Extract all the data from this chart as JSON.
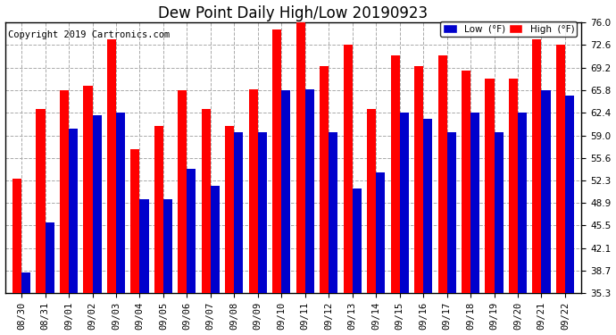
{
  "title": "Dew Point Daily High/Low 20190923",
  "copyright": "Copyright 2019 Cartronics.com",
  "dates": [
    "08/30",
    "08/31",
    "09/01",
    "09/02",
    "09/03",
    "09/04",
    "09/05",
    "09/06",
    "09/07",
    "09/08",
    "09/09",
    "09/10",
    "09/11",
    "09/12",
    "09/13",
    "09/14",
    "09/15",
    "09/16",
    "09/17",
    "09/18",
    "09/19",
    "09/20",
    "09/21",
    "09/22"
  ],
  "high": [
    52.5,
    63.0,
    65.8,
    66.5,
    73.5,
    57.0,
    60.5,
    65.8,
    63.0,
    60.5,
    66.0,
    75.0,
    76.5,
    69.5,
    72.6,
    63.0,
    71.0,
    69.5,
    71.0,
    68.8,
    67.5,
    67.5,
    73.5,
    72.6
  ],
  "low": [
    38.5,
    46.0,
    60.0,
    62.0,
    62.5,
    49.5,
    49.5,
    54.0,
    51.5,
    59.5,
    59.5,
    65.8,
    66.0,
    59.5,
    51.0,
    53.5,
    62.5,
    61.5,
    59.5,
    62.5,
    59.5,
    62.5,
    65.8,
    65.0
  ],
  "ymin": 35.3,
  "ymax": 76.0,
  "yticks": [
    35.3,
    38.7,
    42.1,
    45.5,
    48.9,
    52.3,
    55.6,
    59.0,
    62.4,
    65.8,
    69.2,
    72.6,
    76.0
  ],
  "bar_width": 0.38,
  "high_color": "#ff0000",
  "low_color": "#0000cc",
  "bg_color": "#ffffff",
  "grid_color": "#aaaaaa",
  "title_fontsize": 12,
  "tick_fontsize": 7.5,
  "legend_high_label": "High  (°F)",
  "legend_low_label": "Low  (°F)"
}
